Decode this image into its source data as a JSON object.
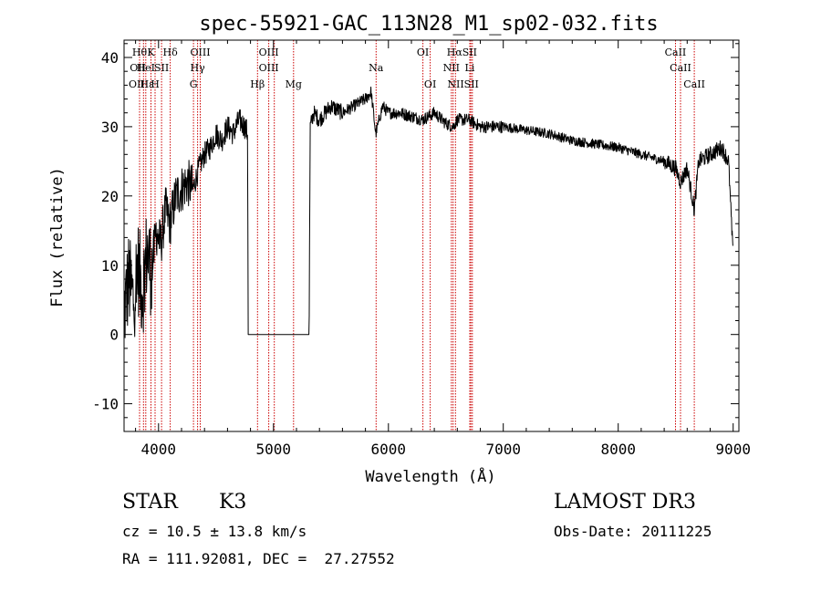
{
  "chart_data": {
    "type": "line",
    "title": "spec-55921-GAC_113N28_M1_sp02-032.fits",
    "xlabel": "Wavelength (Å)",
    "ylabel": "Flux (relative)",
    "xlim": [
      3700,
      9050
    ],
    "ylim": [
      -14,
      42.5
    ],
    "x_ticks": [
      4000,
      5000,
      6000,
      7000,
      8000,
      9000
    ],
    "y_ticks": [
      -10,
      0,
      10,
      20,
      30,
      40
    ],
    "line_color": "#000000",
    "marker_color": "#cc0000",
    "series": [
      {
        "name": "flux",
        "x": [
          3700,
          3740,
          3780,
          3820,
          3860,
          3900,
          3940,
          3980,
          4020,
          4060,
          4100,
          4150,
          4200,
          4250,
          4300,
          4350,
          4400,
          4450,
          4500,
          4550,
          4600,
          4650,
          4700,
          4750,
          4775,
          4780,
          4800,
          5000,
          5200,
          5310,
          5320,
          5350,
          5400,
          5500,
          5600,
          5700,
          5800,
          5850,
          5890,
          5950,
          6000,
          6100,
          6200,
          6300,
          6400,
          6500,
          6562,
          6600,
          6700,
          6800,
          6900,
          7000,
          7200,
          7400,
          7600,
          7800,
          8000,
          8200,
          8400,
          8500,
          8542,
          8600,
          8662,
          8700,
          8800,
          8900,
          8960,
          9000
        ],
        "y": [
          3,
          8,
          5,
          10,
          6,
          12,
          9,
          15,
          13,
          18,
          16,
          20,
          21,
          22,
          21,
          24,
          26,
          27,
          29,
          28,
          30,
          29,
          31,
          30,
          29,
          0,
          0,
          0,
          0,
          0,
          30,
          32,
          31,
          33,
          32,
          33,
          34,
          35,
          29,
          33,
          32,
          32,
          31.5,
          31,
          32,
          30.5,
          30,
          31,
          31,
          30,
          30,
          30,
          29.5,
          29,
          28,
          27.5,
          27,
          26,
          25,
          24,
          22,
          24,
          18,
          25,
          26,
          27,
          25,
          11
        ]
      }
    ],
    "lines": [
      {
        "wave": 3835,
        "upper": "Hθ",
        "lower": "OII"
      },
      {
        "wave": 3869,
        "upper": "",
        "lower": "OII"
      },
      {
        "wave": 3889,
        "upper": "",
        "lower": "HeI"
      },
      {
        "wave": 3934,
        "upper": "K",
        "lower": ""
      },
      {
        "wave": 3970,
        "upper": "",
        "lower": "Hε"
      },
      {
        "wave": 4026,
        "upper": "",
        "lower": "SII"
      },
      {
        "wave": 4102,
        "upper": "Hδ",
        "lower": ""
      },
      {
        "wave": 4304,
        "upper": "",
        "lower": "G"
      },
      {
        "wave": 4340,
        "upper": "",
        "lower": "Hγ"
      },
      {
        "wave": 4363,
        "upper": "OIII",
        "lower": ""
      },
      {
        "wave": 4861,
        "upper": "",
        "lower": "Hβ"
      },
      {
        "wave": 4959,
        "upper": "OIII",
        "lower": "OIII"
      },
      {
        "wave": 5007,
        "upper": "",
        "lower": ""
      },
      {
        "wave": 5175,
        "upper": "",
        "lower": "Mg"
      },
      {
        "wave": 5893,
        "upper": "",
        "lower": "Na"
      },
      {
        "wave": 6300,
        "upper": "OI",
        "lower": ""
      },
      {
        "wave": 6364,
        "upper": "",
        "lower": "OI"
      },
      {
        "wave": 6548,
        "upper": "",
        "lower": "NII"
      },
      {
        "wave": 6563,
        "upper": "Hα",
        "lower": ""
      },
      {
        "wave": 6584,
        "upper": "",
        "lower": "NII"
      },
      {
        "wave": 6708,
        "upper": "",
        "lower": "Li"
      },
      {
        "wave": 6717,
        "upper": "SII",
        "lower": "SII"
      },
      {
        "wave": 6731,
        "upper": "",
        "lower": ""
      },
      {
        "wave": 8498,
        "upper": "CaII",
        "lower": "CaII"
      },
      {
        "wave": 8542,
        "upper": "",
        "lower": ""
      },
      {
        "wave": 8662,
        "upper": "",
        "lower": "CaII"
      }
    ],
    "line_labels": [
      {
        "text": "Hθ",
        "wave": 3835,
        "row": 0
      },
      {
        "text": "K",
        "wave": 3934,
        "row": 0
      },
      {
        "text": "Hδ",
        "wave": 4102,
        "row": 0
      },
      {
        "text": "OIII",
        "wave": 4363,
        "row": 0
      },
      {
        "text": "OIII",
        "wave": 4959,
        "row": 0
      },
      {
        "text": "OI",
        "wave": 6300,
        "row": 0
      },
      {
        "text": "HαSII",
        "wave": 6640,
        "row": 0
      },
      {
        "text": "CaII",
        "wave": 8498,
        "row": 0
      },
      {
        "text": "OII",
        "wave": 3820,
        "row": 1
      },
      {
        "text": "HeI",
        "wave": 3889,
        "row": 1
      },
      {
        "text": "SII",
        "wave": 4026,
        "row": 1
      },
      {
        "text": "Hγ",
        "wave": 4340,
        "row": 1
      },
      {
        "text": "OIII",
        "wave": 4959,
        "row": 1
      },
      {
        "text": "Na",
        "wave": 5893,
        "row": 1
      },
      {
        "text": "NII",
        "wave": 6548,
        "row": 1
      },
      {
        "text": "Li",
        "wave": 6708,
        "row": 1
      },
      {
        "text": "CaII",
        "wave": 8542,
        "row": 1
      },
      {
        "text": "OII",
        "wave": 3810,
        "row": 2
      },
      {
        "text": "Hε",
        "wave": 3900,
        "row": 2
      },
      {
        "text": "H",
        "wave": 3970,
        "row": 2
      },
      {
        "text": "G",
        "wave": 4304,
        "row": 2
      },
      {
        "text": "Hβ",
        "wave": 4861,
        "row": 2
      },
      {
        "text": "Mg",
        "wave": 5175,
        "row": 2
      },
      {
        "text": "OI",
        "wave": 6364,
        "row": 2
      },
      {
        "text": "NIISII",
        "wave": 6650,
        "row": 2
      },
      {
        "text": "CaII",
        "wave": 8662,
        "row": 2
      }
    ]
  },
  "info": {
    "class_label": "STAR",
    "subclass": "K3",
    "cz": "cz = 10.5 ± 13.8 km/s",
    "radec": "RA = 111.92081, DEC =  27.27552",
    "survey": "LAMOST DR3",
    "obs_date": "Obs-Date: 20111225"
  }
}
